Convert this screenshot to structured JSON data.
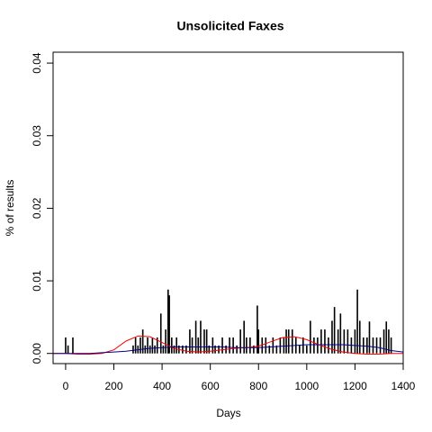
{
  "chart_data": {
    "type": "line",
    "title": "Unsolicited Faxes",
    "x_label": "Days",
    "y_label": "% of results",
    "xlim": [
      -52,
      1400
    ],
    "ylim": [
      -0.0014,
      0.0415
    ],
    "xticks": [
      0,
      200,
      400,
      600,
      800,
      1000,
      1200,
      1400
    ],
    "yticks": [
      {
        "value": 0,
        "label": "0.00"
      },
      0.01,
      0.02,
      0.03,
      0.04
    ],
    "series": [
      {
        "style": "spike",
        "color": "#000000",
        "x": [
          0,
          10,
          30,
          280,
          290,
          300,
          310,
          320,
          330,
          340,
          350,
          360,
          370,
          380,
          395,
          405,
          415,
          425,
          430,
          440,
          450,
          460,
          470,
          485,
          500,
          515,
          525,
          540,
          550,
          560,
          575,
          585,
          595,
          610,
          620,
          635,
          650,
          665,
          680,
          695,
          710,
          725,
          740,
          750,
          765,
          780,
          795,
          800,
          815,
          830,
          845,
          860,
          875,
          890,
          905,
          915,
          925,
          940,
          955,
          970,
          985,
          1000,
          1015,
          1030,
          1045,
          1060,
          1075,
          1090,
          1105,
          1115,
          1130,
          1140,
          1155,
          1170,
          1185,
          1200,
          1210,
          1220,
          1235,
          1250,
          1260,
          1275,
          1290,
          1305,
          1320,
          1330,
          1340,
          1350
        ],
        "values": [
          0.0022,
          0.0011,
          0.0022,
          0.0011,
          0.0022,
          0.0011,
          0.0022,
          0.0033,
          0.0011,
          0.0022,
          0.0011,
          0.0022,
          0.0011,
          0.0022,
          0.0055,
          0.0011,
          0.0033,
          0.0088,
          0.008,
          0.0022,
          0.0011,
          0.0022,
          0.0011,
          0.0011,
          0.0011,
          0.0033,
          0.0022,
          0.0045,
          0.0022,
          0.0045,
          0.0033,
          0.0033,
          0.0011,
          0.0022,
          0.0011,
          0.0011,
          0.0022,
          0.0011,
          0.0022,
          0.0022,
          0.0011,
          0.0033,
          0.0045,
          0.0022,
          0.0022,
          0.0011,
          0.0066,
          0.0033,
          0.0022,
          0.0022,
          0.0011,
          0.0022,
          0.0011,
          0.0022,
          0.0022,
          0.0033,
          0.0033,
          0.0033,
          0.0022,
          0.0011,
          0.0022,
          0.0011,
          0.0045,
          0.0022,
          0.0022,
          0.0033,
          0.0033,
          0.0022,
          0.0045,
          0.0064,
          0.0033,
          0.0055,
          0.0033,
          0.0033,
          0.0022,
          0.0033,
          0.0088,
          0.0045,
          0.0022,
          0.0022,
          0.0044,
          0.0022,
          0.0022,
          0.0022,
          0.0033,
          0.0044,
          0.0033,
          0.0022
        ]
      },
      {
        "style": "line",
        "color": "#ff0000",
        "x": [
          -50,
          0,
          50,
          100,
          150,
          200,
          250,
          300,
          350,
          400,
          450,
          500,
          550,
          600,
          650,
          700,
          750,
          800,
          850,
          900,
          950,
          1000,
          1050,
          1100,
          1150,
          1200,
          1250,
          1300,
          1350,
          1400
        ],
        "values": [
          0,
          0,
          -0.0001,
          -0.0001,
          0,
          0.0005,
          0.0017,
          0.0024,
          0.0023,
          0.0015,
          0.0007,
          0.0003,
          0.0002,
          0.0003,
          0.0005,
          0.0007,
          0.0008,
          0.001,
          0.0016,
          0.0022,
          0.0023,
          0.0019,
          0.0012,
          0.0006,
          0.0002,
          0,
          -0.0001,
          -0.0001,
          0,
          0
        ]
      },
      {
        "style": "line",
        "color": "#00008b",
        "x": [
          -50,
          0,
          50,
          100,
          150,
          200,
          250,
          300,
          350,
          400,
          450,
          500,
          550,
          600,
          650,
          700,
          750,
          800,
          850,
          900,
          950,
          1000,
          1050,
          1100,
          1150,
          1200,
          1250,
          1300,
          1350,
          1400
        ],
        "values": [
          0,
          0,
          0,
          0,
          0.0001,
          0.0002,
          0.0003,
          0.0005,
          0.0007,
          0.0008,
          0.0009,
          0.0009,
          0.0009,
          0.0009,
          0.0009,
          0.0008,
          0.0008,
          0.0008,
          0.0009,
          0.001,
          0.0011,
          0.0012,
          0.0012,
          0.0012,
          0.0012,
          0.0011,
          0.001,
          0.0008,
          0.0004,
          0.0002
        ]
      }
    ]
  }
}
